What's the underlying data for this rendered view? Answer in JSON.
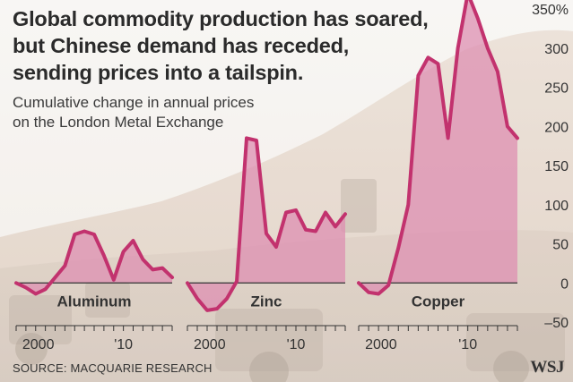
{
  "title_lines": [
    "Global commodity production has soared,",
    "but Chinese demand has receded,",
    "sending prices into a tailspin."
  ],
  "subtitle_lines": [
    "Cumulative change in annual prices",
    "on the London Metal Exchange"
  ],
  "source": "SOURCE: MACQUARIE RESEARCH",
  "logo": "WSJ",
  "colors": {
    "line": "#c2326e",
    "fill": "#dd8fb1",
    "text": "#333333",
    "zero_line": "#333333"
  },
  "chart_data": {
    "type": "area",
    "ylim": [
      -50,
      350
    ],
    "y_ticks": [
      350,
      300,
      250,
      200,
      150,
      100,
      50,
      0,
      -50
    ],
    "y_tick_labels": [
      "350%",
      "300",
      "250",
      "200",
      "150",
      "100",
      "50",
      "0",
      "–50"
    ],
    "x_tick_labels": [
      "2000",
      "'10"
    ],
    "series": [
      {
        "name": "Aluminum",
        "x": [
          1999,
          2000,
          2001,
          2002,
          2003,
          2004,
          2005,
          2006,
          2007,
          2008,
          2009,
          2010,
          2011,
          2012,
          2013,
          2014,
          2015
        ],
        "values": [
          0,
          -6,
          -14,
          -8,
          7,
          22,
          62,
          66,
          62,
          35,
          4,
          40,
          54,
          30,
          17,
          19,
          7
        ]
      },
      {
        "name": "Zinc",
        "x": [
          1999,
          2000,
          2001,
          2002,
          2003,
          2004,
          2005,
          2006,
          2007,
          2008,
          2009,
          2010,
          2011,
          2012,
          2013,
          2014,
          2015
        ],
        "values": [
          0,
          -20,
          -35,
          -33,
          -20,
          2,
          185,
          182,
          63,
          46,
          90,
          93,
          68,
          66,
          90,
          72,
          88
        ]
      },
      {
        "name": "Copper",
        "x": [
          1999,
          2000,
          2001,
          2002,
          2003,
          2004,
          2005,
          2006,
          2007,
          2008,
          2009,
          2010,
          2011,
          2012,
          2013,
          2014,
          2015
        ],
        "values": [
          0,
          -12,
          -14,
          -3,
          45,
          100,
          265,
          288,
          280,
          185,
          300,
          370,
          338,
          300,
          270,
          200,
          185
        ]
      }
    ]
  }
}
